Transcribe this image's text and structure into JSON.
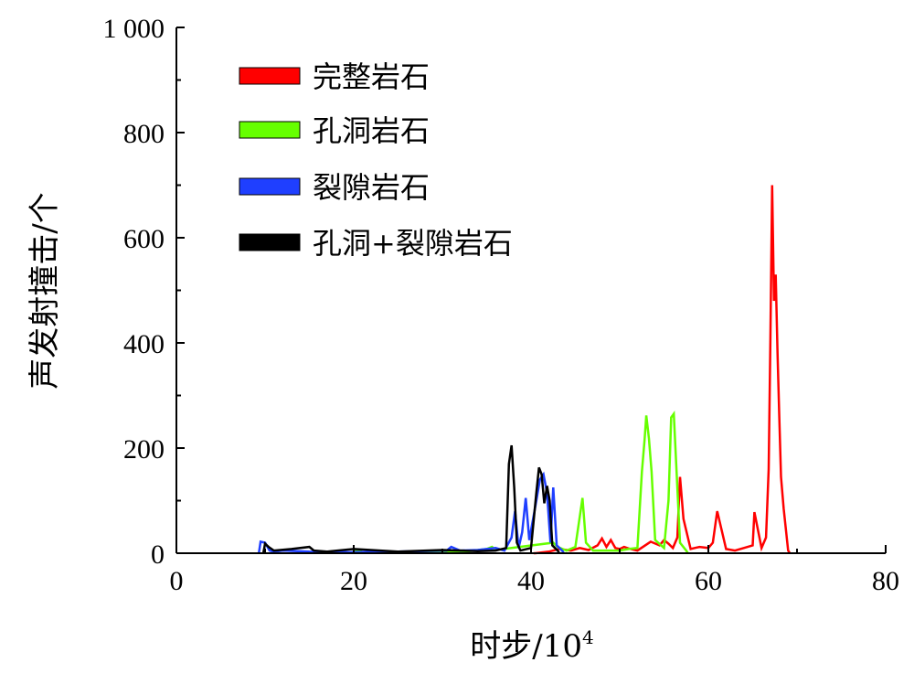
{
  "chart_data": {
    "type": "line",
    "xlabel": "时步/10",
    "xlabel_sup": "4",
    "ylabel": "声发射撞击/个",
    "xlim": [
      0,
      80
    ],
    "ylim": [
      0,
      1000
    ],
    "x_ticks": [
      "0",
      "20",
      "40",
      "60",
      "80"
    ],
    "y_ticks": [
      "0",
      "200",
      "400",
      "600",
      "800",
      "1 000"
    ],
    "grid": false,
    "legend_position": "top-left",
    "series": [
      {
        "name": "完整岩石",
        "color": "#ff0000",
        "points": [
          [
            40.5,
            0
          ],
          [
            42,
            3
          ],
          [
            43.2,
            8
          ],
          [
            44.5,
            5
          ],
          [
            45.5,
            10
          ],
          [
            46.5,
            6
          ],
          [
            47.5,
            15
          ],
          [
            48,
            28
          ],
          [
            48.5,
            12
          ],
          [
            49,
            25
          ],
          [
            49.5,
            10
          ],
          [
            50,
            8
          ],
          [
            50.5,
            12
          ],
          [
            51,
            9
          ],
          [
            52,
            5
          ],
          [
            53.5,
            22
          ],
          [
            54.5,
            15
          ],
          [
            55,
            25
          ],
          [
            55.5,
            18
          ],
          [
            56,
            10
          ],
          [
            56.5,
            30
          ],
          [
            56.8,
            145
          ],
          [
            57.2,
            65
          ],
          [
            58,
            8
          ],
          [
            59,
            12
          ],
          [
            60,
            10
          ],
          [
            60.5,
            20
          ],
          [
            61,
            80
          ],
          [
            62,
            8
          ],
          [
            63,
            5
          ],
          [
            64,
            10
          ],
          [
            65,
            15
          ],
          [
            65.2,
            78
          ],
          [
            66,
            10
          ],
          [
            66.5,
            30
          ],
          [
            66.8,
            160
          ],
          [
            67,
            410
          ],
          [
            67.2,
            700
          ],
          [
            67.4,
            480
          ],
          [
            67.6,
            530
          ],
          [
            67.8,
            380
          ],
          [
            68,
            260
          ],
          [
            68.2,
            145
          ],
          [
            68.5,
            85
          ],
          [
            69,
            5
          ]
        ]
      },
      {
        "name": "孔洞岩石",
        "color": "#66ff00",
        "points": [
          [
            20,
            3
          ],
          [
            20.5,
            6
          ],
          [
            21,
            2
          ],
          [
            25,
            3
          ],
          [
            30,
            2
          ],
          [
            33,
            4
          ],
          [
            35,
            8
          ],
          [
            35.6,
            12
          ],
          [
            36,
            6
          ],
          [
            42.5,
            20
          ],
          [
            43,
            12
          ],
          [
            44,
            5
          ],
          [
            45,
            12
          ],
          [
            45.8,
            105
          ],
          [
            46.2,
            20
          ],
          [
            47,
            5
          ],
          [
            50,
            5
          ],
          [
            51,
            8
          ],
          [
            52,
            10
          ],
          [
            52.5,
            155
          ],
          [
            52.8,
            215
          ],
          [
            53,
            262
          ],
          [
            53.3,
            218
          ],
          [
            53.6,
            155
          ],
          [
            54,
            25
          ],
          [
            55,
            10
          ],
          [
            55.5,
            100
          ],
          [
            55.8,
            258
          ],
          [
            56.1,
            265
          ],
          [
            56.4,
            160
          ],
          [
            56.8,
            20
          ],
          [
            57.5,
            5
          ]
        ]
      },
      {
        "name": "裂隙岩石",
        "color": "#1f3fff",
        "points": [
          [
            9.5,
            22
          ],
          [
            10,
            20
          ],
          [
            10.5,
            5
          ],
          [
            11,
            3
          ],
          [
            12,
            5
          ],
          [
            15,
            3
          ],
          [
            20,
            2
          ],
          [
            25,
            3
          ],
          [
            30.5,
            5
          ],
          [
            31,
            12
          ],
          [
            32,
            5
          ],
          [
            34,
            6
          ],
          [
            36,
            10
          ],
          [
            37,
            5
          ],
          [
            37.8,
            30
          ],
          [
            38.2,
            80
          ],
          [
            38.6,
            10
          ],
          [
            39,
            40
          ],
          [
            39.4,
            105
          ],
          [
            39.8,
            25
          ],
          [
            40.5,
            90
          ],
          [
            41,
            140
          ],
          [
            41.4,
            150
          ],
          [
            41.8,
            115
          ],
          [
            42.2,
            20
          ],
          [
            42.5,
            125
          ],
          [
            42.9,
            15
          ],
          [
            43.5,
            5
          ]
        ]
      },
      {
        "name": "孔洞+裂隙岩石",
        "color": "#000000",
        "points": [
          [
            10,
            18
          ],
          [
            10.4,
            12
          ],
          [
            11,
            5
          ],
          [
            13,
            8
          ],
          [
            15,
            12
          ],
          [
            15.5,
            5
          ],
          [
            17,
            3
          ],
          [
            20,
            8
          ],
          [
            23,
            5
          ],
          [
            25,
            3
          ],
          [
            30,
            6
          ],
          [
            34,
            4
          ],
          [
            36,
            5
          ],
          [
            37.2,
            10
          ],
          [
            37.5,
            170
          ],
          [
            37.8,
            205
          ],
          [
            38.1,
            125
          ],
          [
            38.4,
            20
          ],
          [
            38.8,
            5
          ],
          [
            40,
            10
          ],
          [
            40.6,
            115
          ],
          [
            40.9,
            163
          ],
          [
            41.2,
            150
          ],
          [
            41.5,
            95
          ],
          [
            41.8,
            128
          ],
          [
            42.1,
            100
          ],
          [
            42.4,
            15
          ],
          [
            43,
            5
          ]
        ]
      }
    ]
  }
}
